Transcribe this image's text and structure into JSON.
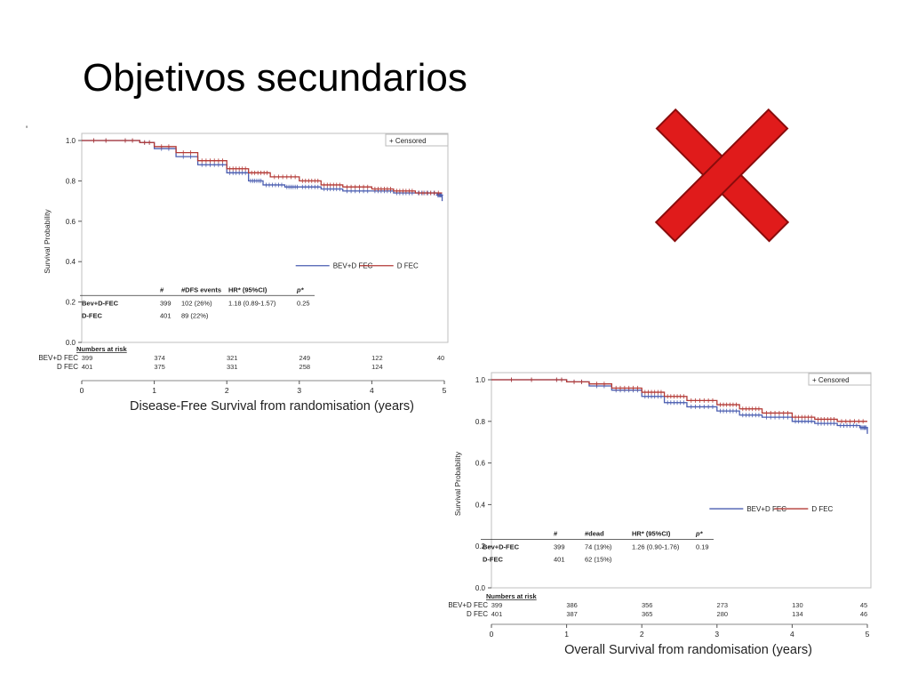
{
  "slide": {
    "title": "Objetivos secundarios",
    "stray_mark": "'"
  },
  "reject_mark": {
    "icon": "red-x-icon",
    "color": "#e01b1b",
    "outline": "#8a0c0c"
  },
  "colors": {
    "bev": "#4a5db0",
    "dfec": "#b33a36"
  },
  "chart_data": [
    {
      "id": "dfs",
      "type": "line",
      "xlabel": "Disease-Free Survival from randomisation (years)",
      "ylabel": "Survival Probability",
      "xlim": [
        0,
        5
      ],
      "ylim": [
        0,
        1
      ],
      "x_ticks": [
        "0",
        "1",
        "2",
        "3",
        "4",
        "5"
      ],
      "y_ticks": [
        "0.0",
        "0.2",
        "0.4",
        "0.6",
        "0.8",
        "1.0"
      ],
      "censor_legend": "+ Censored",
      "series": [
        {
          "name": "BEV+D FEC",
          "color": "#4a5db0",
          "x": [
            0,
            0.5,
            0.8,
            1.0,
            1.3,
            1.6,
            2.0,
            2.3,
            2.5,
            2.8,
            3.0,
            3.3,
            3.6,
            4.0,
            4.3,
            4.6,
            4.9,
            4.97
          ],
          "y": [
            1.0,
            1.0,
            0.99,
            0.96,
            0.92,
            0.88,
            0.84,
            0.8,
            0.78,
            0.77,
            0.77,
            0.76,
            0.75,
            0.75,
            0.74,
            0.74,
            0.73,
            0.7
          ]
        },
        {
          "name": "D FEC",
          "color": "#b33a36",
          "x": [
            0,
            0.5,
            0.8,
            1.0,
            1.3,
            1.6,
            2.0,
            2.3,
            2.6,
            3.0,
            3.3,
            3.6,
            4.0,
            4.3,
            4.6,
            4.97
          ],
          "y": [
            1.0,
            1.0,
            0.99,
            0.97,
            0.94,
            0.9,
            0.86,
            0.84,
            0.82,
            0.8,
            0.78,
            0.77,
            0.76,
            0.75,
            0.74,
            0.74
          ]
        }
      ],
      "stats_table": {
        "headers": [
          "",
          "#",
          "#DFS events",
          "HR* (95%CI)",
          "p*"
        ],
        "rows": [
          [
            "Bev+D-FEC",
            "399",
            "102 (26%)",
            "1.18 (0.89-1.57)",
            "0.25"
          ],
          [
            "D-FEC",
            "401",
            "89 (22%)",
            "",
            ""
          ]
        ]
      },
      "risk_table": {
        "title": "Numbers at risk",
        "rows": [
          {
            "label": "BEV+D FEC",
            "values": [
              "399",
              "374",
              "321",
              "249",
              "122",
              "40"
            ]
          },
          {
            "label": "D FEC",
            "values": [
              "401",
              "375",
              "331",
              "258",
              "124",
              ""
            ]
          }
        ]
      }
    },
    {
      "id": "os",
      "type": "line",
      "xlabel": "Overall Survival from randomisation (years)",
      "ylabel": "Survival Probability",
      "xlim": [
        0,
        5
      ],
      "ylim": [
        0,
        1
      ],
      "x_ticks": [
        "0",
        "1",
        "2",
        "3",
        "4",
        "5"
      ],
      "y_ticks": [
        "0.0",
        "0.2",
        "0.4",
        "0.6",
        "0.8",
        "1.0"
      ],
      "censor_legend": "+ Censored",
      "series": [
        {
          "name": "BEV+D FEC",
          "color": "#4a5db0",
          "x": [
            0,
            0.8,
            1.0,
            1.3,
            1.6,
            2.0,
            2.3,
            2.6,
            3.0,
            3.3,
            3.6,
            4.0,
            4.3,
            4.6,
            4.9,
            5.0
          ],
          "y": [
            1.0,
            1.0,
            0.99,
            0.97,
            0.95,
            0.92,
            0.89,
            0.87,
            0.85,
            0.83,
            0.82,
            0.8,
            0.79,
            0.78,
            0.77,
            0.74
          ]
        },
        {
          "name": "D FEC",
          "color": "#b33a36",
          "x": [
            0,
            0.8,
            1.0,
            1.3,
            1.6,
            2.0,
            2.3,
            2.6,
            3.0,
            3.3,
            3.6,
            4.0,
            4.3,
            4.6,
            5.0
          ],
          "y": [
            1.0,
            1.0,
            0.99,
            0.98,
            0.96,
            0.94,
            0.92,
            0.9,
            0.88,
            0.86,
            0.84,
            0.82,
            0.81,
            0.8,
            0.8
          ]
        }
      ],
      "stats_table": {
        "headers": [
          "",
          "#",
          "#dead",
          "HR* (95%CI)",
          "p*"
        ],
        "rows": [
          [
            "Bev+D-FEC",
            "399",
            "74 (19%)",
            "1.26 (0.90-1.76)",
            "0.19"
          ],
          [
            "D-FEC",
            "401",
            "62 (15%)",
            "",
            ""
          ]
        ]
      },
      "risk_table": {
        "title": "Numbers at risk",
        "rows": [
          {
            "label": "BEV+D FEC",
            "values": [
              "399",
              "386",
              "356",
              "273",
              "130",
              "45"
            ]
          },
          {
            "label": "D FEC",
            "values": [
              "401",
              "387",
              "365",
              "280",
              "134",
              "46"
            ]
          }
        ]
      }
    }
  ]
}
